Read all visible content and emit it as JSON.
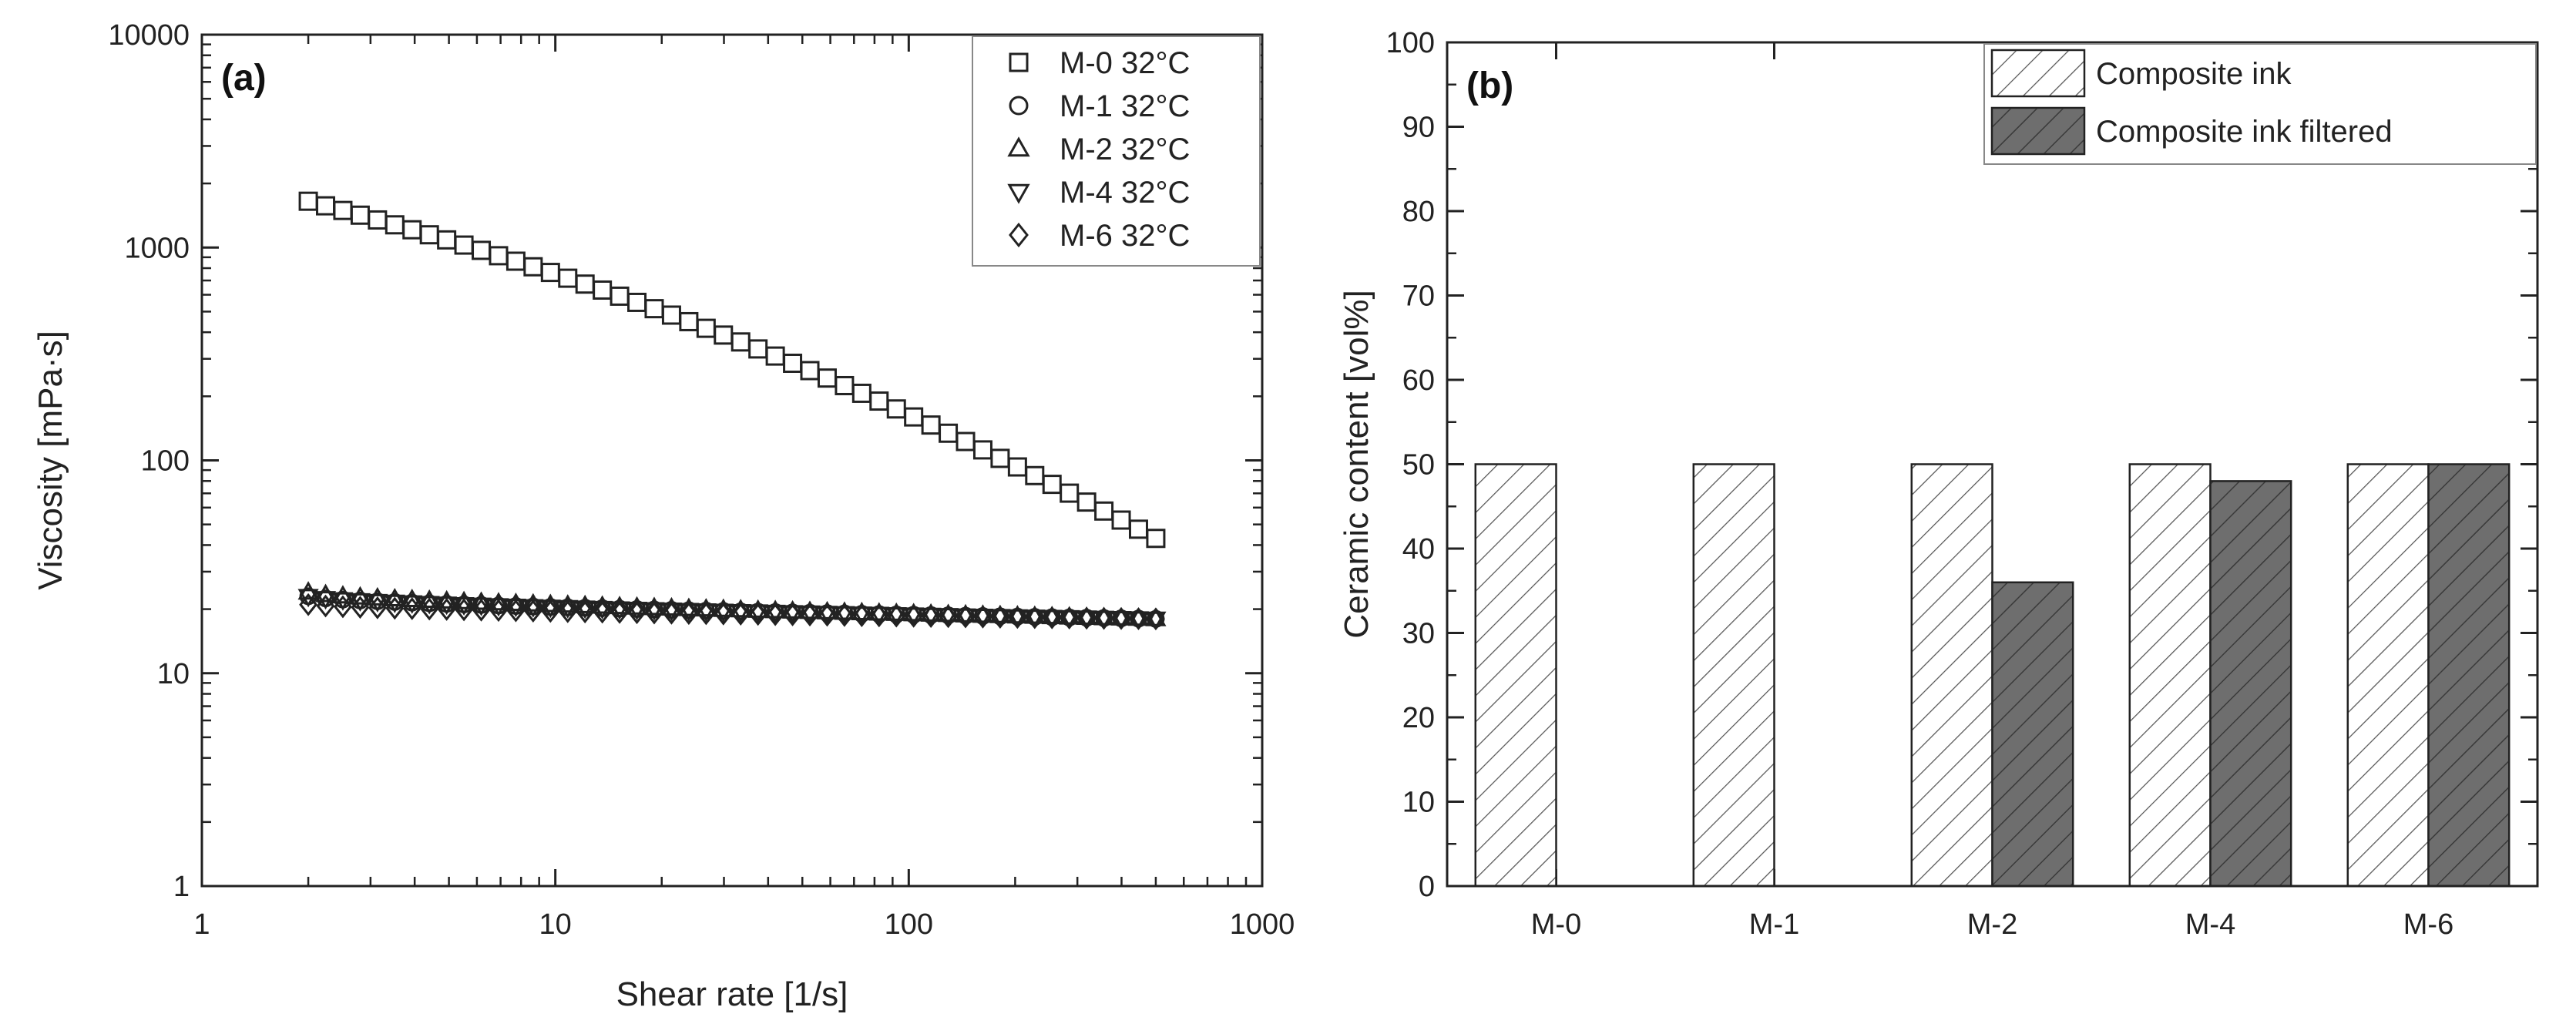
{
  "chart_data": [
    {
      "panel_label": "(a)",
      "type": "scatter",
      "xscale": "log",
      "yscale": "log",
      "xlabel": "Shear rate [1/s]",
      "ylabel": "Viscosity [mPa·s]",
      "xlim": [
        1,
        1000
      ],
      "ylim": [
        1,
        10000
      ],
      "x_ticks": [
        1,
        10,
        100,
        1000
      ],
      "x_tick_labels": [
        "1",
        "10",
        "100",
        "1000"
      ],
      "y_ticks": [
        1,
        10,
        100,
        1000,
        10000
      ],
      "y_tick_labels": [
        "1",
        "10",
        "100",
        "1000",
        "10000"
      ],
      "legend_position": "top-right",
      "series": [
        {
          "name": "M-0 32°C",
          "marker": "square",
          "x_range": [
            2,
            500
          ],
          "points": 50,
          "y_start": 1650,
          "y_end": 43
        },
        {
          "name": "M-1 32°C",
          "marker": "circle",
          "x_range": [
            2,
            500
          ],
          "points": 50,
          "y_start": 23,
          "y_end": 18
        },
        {
          "name": "M-2 32°C",
          "marker": "triangle-up",
          "x_range": [
            2,
            500
          ],
          "points": 50,
          "y_start": 24,
          "y_end": 18
        },
        {
          "name": "M-4 32°C",
          "marker": "triangle-down",
          "x_range": [
            2,
            500
          ],
          "points": 50,
          "y_start": 23,
          "y_end": 18
        },
        {
          "name": "M-6 32°C",
          "marker": "diamond",
          "x_range": [
            2,
            500
          ],
          "points": 50,
          "y_start": 21,
          "y_end": 18
        }
      ]
    },
    {
      "panel_label": "(b)",
      "type": "bar",
      "ylabel": "Ceramic content [vol%]",
      "ylim": [
        0,
        100
      ],
      "y_ticks": [
        0,
        10,
        20,
        30,
        40,
        50,
        60,
        70,
        80,
        90,
        100
      ],
      "categories": [
        "M-0",
        "M-1",
        "M-2",
        "M-4",
        "M-6"
      ],
      "legend_position": "top-right",
      "series": [
        {
          "name": "Composite ink",
          "fill": "hatched-light",
          "values": [
            50,
            50,
            50,
            50,
            50
          ]
        },
        {
          "name": "Composite ink filtered",
          "fill": "hatched-dark",
          "values": [
            null,
            null,
            36,
            48,
            50
          ]
        }
      ]
    }
  ],
  "colors": {
    "dark_bar": "#6e6e6e",
    "light_bar": "#ffffff",
    "stroke": "#222222"
  }
}
